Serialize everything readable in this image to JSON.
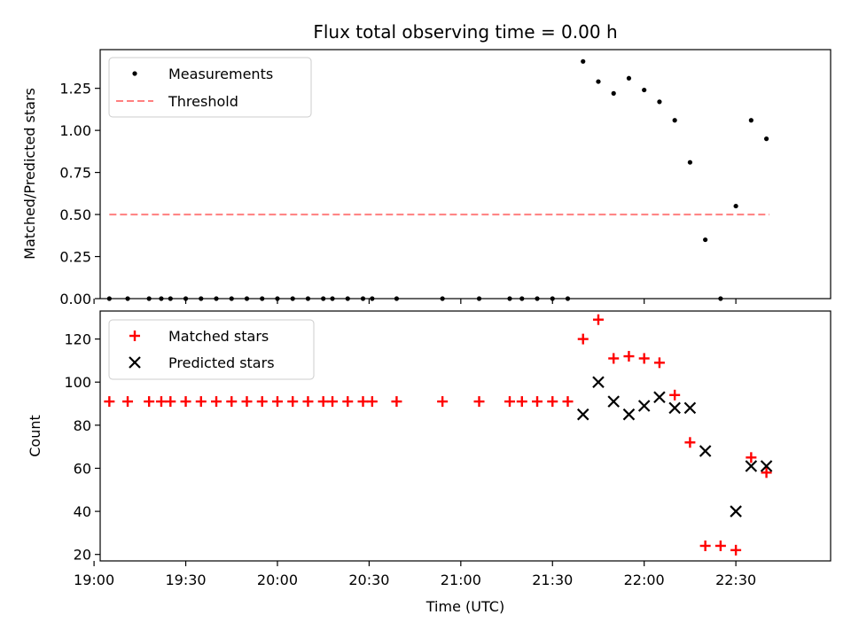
{
  "chart_data": [
    {
      "type": "scatter",
      "title": "Flux total observing time = 0.00 h",
      "xlabel": "",
      "ylabel": "Matched/Predicted stars",
      "xlim_minutes_utc": [
        1142,
        1381
      ],
      "ylim": [
        0,
        1.48
      ],
      "yticks": [
        0.0,
        0.25,
        0.5,
        0.75,
        1.0,
        1.25
      ],
      "ytick_labels": [
        "0.00",
        "0.25",
        "0.50",
        "0.75",
        "1.00",
        "1.25"
      ],
      "legend": {
        "position": "top-left",
        "entries": [
          "Measurements",
          "Threshold"
        ]
      },
      "series": [
        {
          "name": "Measurements",
          "kind": "points",
          "color": "#000000",
          "x_minutes_utc": [
            1145,
            1151,
            1158,
            1162,
            1165,
            1170,
            1175,
            1180,
            1185,
            1190,
            1195,
            1200,
            1205,
            1210,
            1215,
            1218,
            1223,
            1228,
            1231,
            1239,
            1254,
            1266,
            1276,
            1280,
            1285,
            1290,
            1295,
            1300,
            1305,
            1310,
            1315,
            1320,
            1325,
            1330,
            1335,
            1340,
            1345,
            1350,
            1355,
            1360
          ],
          "y": [
            0,
            0,
            0,
            0,
            0,
            0,
            0,
            0,
            0,
            0,
            0,
            0,
            0,
            0,
            0,
            0,
            0,
            0,
            0,
            0,
            0,
            0,
            0,
            0,
            0,
            0,
            0,
            1.41,
            1.29,
            1.22,
            1.31,
            1.24,
            1.17,
            1.06,
            0.81,
            0.35,
            0,
            0.55,
            1.06,
            0.95
          ]
        },
        {
          "name": "Threshold",
          "kind": "dashed-line",
          "color": "#ff7f7f",
          "x_minutes_utc": [
            1145,
            1361
          ],
          "y": [
            0.5,
            0.5
          ]
        }
      ]
    },
    {
      "type": "scatter",
      "title": "",
      "xlabel": "Time (UTC)",
      "ylabel": "Count",
      "xlim_minutes_utc": [
        1142,
        1381
      ],
      "ylim": [
        17,
        133
      ],
      "yticks": [
        20,
        40,
        60,
        80,
        100,
        120
      ],
      "ytick_labels": [
        "20",
        "40",
        "60",
        "80",
        "100",
        "120"
      ],
      "xticks_minutes_utc": [
        1140,
        1170,
        1200,
        1230,
        1260,
        1290,
        1320,
        1350
      ],
      "xtick_labels": [
        "19:00",
        "19:30",
        "20:00",
        "20:30",
        "21:00",
        "21:30",
        "22:00",
        "22:30"
      ],
      "legend": {
        "position": "top-left",
        "entries": [
          "Matched stars",
          "Predicted stars"
        ]
      },
      "series": [
        {
          "name": "Matched stars",
          "marker": "plus",
          "color": "#ff0000",
          "x_minutes_utc": [
            1145,
            1151,
            1158,
            1162,
            1165,
            1170,
            1175,
            1180,
            1185,
            1190,
            1195,
            1200,
            1205,
            1210,
            1215,
            1218,
            1223,
            1228,
            1231,
            1239,
            1254,
            1266,
            1276,
            1280,
            1285,
            1290,
            1295,
            1300,
            1305,
            1310,
            1315,
            1320,
            1325,
            1330,
            1335,
            1340,
            1345,
            1350,
            1355,
            1360
          ],
          "y": [
            91,
            91,
            91,
            91,
            91,
            91,
            91,
            91,
            91,
            91,
            91,
            91,
            91,
            91,
            91,
            91,
            91,
            91,
            91,
            91,
            91,
            91,
            91,
            91,
            91,
            91,
            91,
            120,
            129,
            111,
            112,
            111,
            109,
            94,
            72,
            24,
            24,
            22,
            65,
            58
          ]
        },
        {
          "name": "Predicted stars",
          "marker": "x",
          "color": "#000000",
          "x_minutes_utc": [
            1300,
            1305,
            1310,
            1315,
            1320,
            1325,
            1330,
            1335,
            1340,
            1350,
            1355,
            1360
          ],
          "y": [
            85,
            100,
            91,
            85,
            89,
            93,
            88,
            88,
            68,
            40,
            61,
            61
          ]
        }
      ]
    }
  ]
}
